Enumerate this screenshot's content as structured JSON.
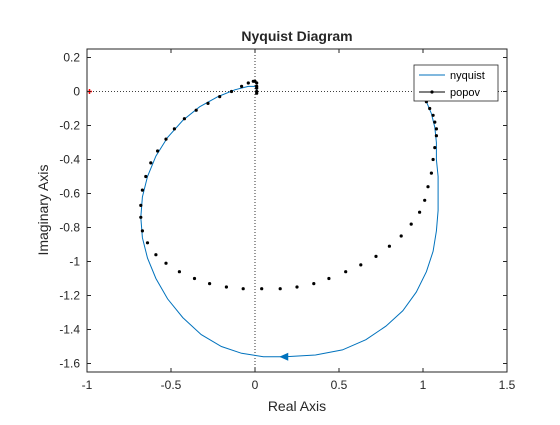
{
  "chart_data": {
    "type": "line",
    "title": "Nyquist Diagram",
    "xlabel": "Real Axis",
    "ylabel": "Imaginary Axis",
    "xlim": [
      -1,
      1.5
    ],
    "ylim": [
      -1.65,
      0.25
    ],
    "x_ticks": [
      -1,
      -0.5,
      0,
      0.5,
      1,
      1.5
    ],
    "x_tick_labels": [
      "-1",
      "-0.5",
      "0",
      "0.5",
      "1",
      "1.5"
    ],
    "y_ticks": [
      0.2,
      0,
      -0.2,
      -0.4,
      -0.6,
      -0.8,
      -1,
      -1.2,
      -1.4,
      -1.6
    ],
    "y_tick_labels": [
      "0.2",
      "0",
      "-0.2",
      "-0.4",
      "-0.6",
      "-0.8",
      "-1",
      "-1.2",
      "-1.4",
      "-1.6"
    ],
    "grid": false,
    "legend_position": "top-right",
    "colors": {
      "nyquist": "#0072BD",
      "popov": "#000000",
      "critical_point": "#FF0000",
      "ref_lines": "#000000"
    },
    "critical_point": {
      "x": -1,
      "y": 0
    },
    "arrow_point": {
      "x": 0.18,
      "y": -1.56,
      "direction": "left"
    },
    "series": [
      {
        "name": "nyquist",
        "style": "line",
        "points": [
          [
            0.99,
            0.0
          ],
          [
            1.02,
            -0.06
          ],
          [
            1.05,
            -0.13
          ],
          [
            1.07,
            -0.21
          ],
          [
            1.08,
            -0.3
          ],
          [
            1.08,
            -0.4
          ],
          [
            1.09,
            -0.5
          ],
          [
            1.09,
            -0.6
          ],
          [
            1.09,
            -0.7
          ],
          [
            1.08,
            -0.82
          ],
          [
            1.06,
            -0.94
          ],
          [
            1.02,
            -1.06
          ],
          [
            0.96,
            -1.18
          ],
          [
            0.88,
            -1.29
          ],
          [
            0.78,
            -1.38
          ],
          [
            0.66,
            -1.46
          ],
          [
            0.52,
            -1.52
          ],
          [
            0.36,
            -1.55
          ],
          [
            0.18,
            -1.56
          ],
          [
            0.05,
            -1.56
          ],
          [
            -0.08,
            -1.54
          ],
          [
            -0.2,
            -1.5
          ],
          [
            -0.32,
            -1.43
          ],
          [
            -0.43,
            -1.33
          ],
          [
            -0.52,
            -1.22
          ],
          [
            -0.59,
            -1.1
          ],
          [
            -0.64,
            -0.98
          ],
          [
            -0.67,
            -0.86
          ],
          [
            -0.68,
            -0.74
          ],
          [
            -0.67,
            -0.62
          ],
          [
            -0.64,
            -0.5
          ],
          [
            -0.59,
            -0.38
          ],
          [
            -0.52,
            -0.27
          ],
          [
            -0.43,
            -0.17
          ],
          [
            -0.33,
            -0.09
          ],
          [
            -0.22,
            -0.03
          ],
          [
            -0.12,
            0.01
          ],
          [
            -0.04,
            0.03
          ],
          [
            0.0,
            0.03
          ],
          [
            0.01,
            0.02
          ],
          [
            0.01,
            0.0
          ]
        ]
      },
      {
        "name": "popov",
        "style": "dotted-marker",
        "points": [
          [
            0.99,
            0.0
          ],
          [
            1.0,
            -0.03
          ],
          [
            1.02,
            -0.06
          ],
          [
            1.04,
            -0.1
          ],
          [
            1.06,
            -0.14
          ],
          [
            1.07,
            -0.18
          ],
          [
            1.08,
            -0.22
          ],
          [
            1.08,
            -0.26
          ],
          [
            1.07,
            -0.33
          ],
          [
            1.06,
            -0.4
          ],
          [
            1.05,
            -0.48
          ],
          [
            1.03,
            -0.56
          ],
          [
            1.01,
            -0.64
          ],
          [
            0.98,
            -0.71
          ],
          [
            0.93,
            -0.78
          ],
          [
            0.87,
            -0.85
          ],
          [
            0.8,
            -0.91
          ],
          [
            0.72,
            -0.97
          ],
          [
            0.63,
            -1.02
          ],
          [
            0.54,
            -1.06
          ],
          [
            0.44,
            -1.1
          ],
          [
            0.35,
            -1.13
          ],
          [
            0.25,
            -1.15
          ],
          [
            0.15,
            -1.16
          ],
          [
            0.04,
            -1.16
          ],
          [
            -0.07,
            -1.16
          ],
          [
            -0.17,
            -1.15
          ],
          [
            -0.27,
            -1.13
          ],
          [
            -0.36,
            -1.1
          ],
          [
            -0.45,
            -1.06
          ],
          [
            -0.53,
            -1.01
          ],
          [
            -0.59,
            -0.96
          ],
          [
            -0.64,
            -0.89
          ],
          [
            -0.67,
            -0.82
          ],
          [
            -0.68,
            -0.74
          ],
          [
            -0.68,
            -0.67
          ],
          [
            -0.67,
            -0.58
          ],
          [
            -0.65,
            -0.5
          ],
          [
            -0.62,
            -0.42
          ],
          [
            -0.58,
            -0.35
          ],
          [
            -0.53,
            -0.28
          ],
          [
            -0.48,
            -0.22
          ],
          [
            -0.42,
            -0.16
          ],
          [
            -0.35,
            -0.11
          ],
          [
            -0.28,
            -0.07
          ],
          [
            -0.21,
            -0.03
          ],
          [
            -0.14,
            0.0
          ],
          [
            -0.08,
            0.03
          ],
          [
            -0.04,
            0.05
          ],
          [
            -0.01,
            0.06
          ],
          [
            0.0,
            0.06
          ],
          [
            0.01,
            0.05
          ],
          [
            0.01,
            0.03
          ],
          [
            0.01,
            0.02
          ],
          [
            0.01,
            0.0
          ],
          [
            0.01,
            -0.01
          ]
        ]
      }
    ]
  }
}
